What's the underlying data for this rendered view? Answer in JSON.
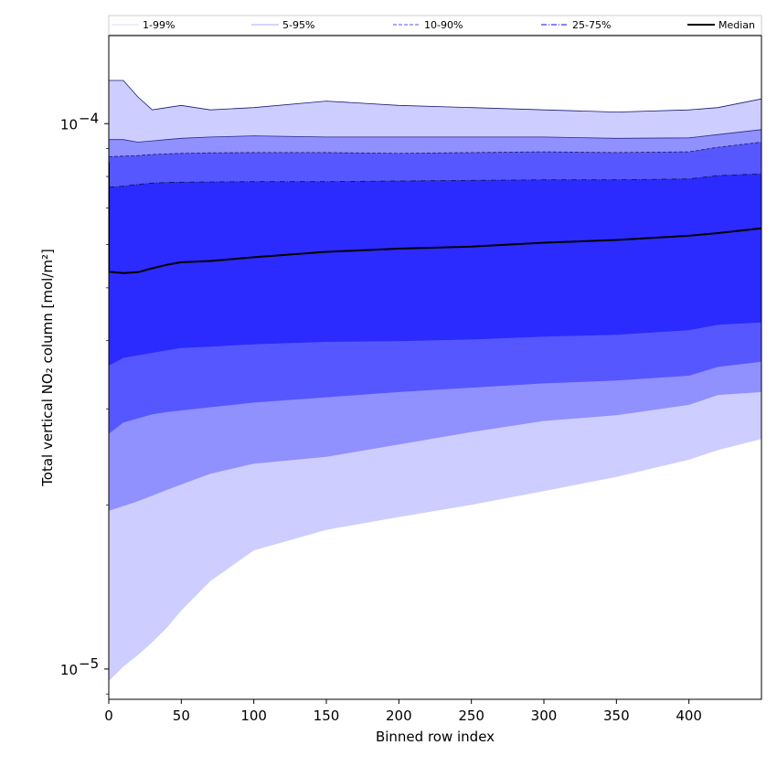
{
  "chart_data": {
    "type": "area",
    "xlabel": "Binned row index",
    "ylabel": "Total vertical NO₂ column [mol/m²]",
    "xlim": [
      0,
      450
    ],
    "ylim": [
      8.8e-06,
      0.000145
    ],
    "yscale": "log",
    "xticks": [
      0,
      50,
      100,
      150,
      200,
      250,
      300,
      350,
      400
    ],
    "xtick_labels": [
      "0",
      "50",
      "100",
      "150",
      "200",
      "250",
      "300",
      "350",
      "400"
    ],
    "ytick_labels": [
      {
        "value": 0.0001,
        "mantissa": "10",
        "exponent": "−4"
      },
      {
        "value": 1e-05,
        "mantissa": "10",
        "exponent": "−5"
      }
    ],
    "legend_position": "top",
    "colors": {
      "band_1_99": "#cdcdff",
      "band_5_95": "#9090ff",
      "band_10_90": "#5757ff",
      "band_25_75": "#2b2bff",
      "median": "#000000"
    },
    "legend": [
      {
        "label": "1-99%",
        "style": "solid-thin"
      },
      {
        "label": "5-95%",
        "style": "solid-thin"
      },
      {
        "label": "10-90%",
        "style": "dashed"
      },
      {
        "label": "25-75%",
        "style": "dashdot"
      },
      {
        "label": "Median",
        "style": "solid-thick"
      }
    ],
    "x": [
      0,
      10,
      20,
      30,
      40,
      50,
      70,
      100,
      150,
      200,
      250,
      300,
      350,
      400,
      420,
      450
    ],
    "series": [
      {
        "name": "1-99%",
        "lower": [
          9.5e-06,
          1.01e-05,
          1.06e-05,
          1.12e-05,
          1.19e-05,
          1.28e-05,
          1.45e-05,
          1.65e-05,
          1.8e-05,
          1.9e-05,
          2e-05,
          2.12e-05,
          2.25e-05,
          2.42e-05,
          2.52e-05,
          2.64e-05
        ],
        "upper": [
          0.00012,
          0.00012,
          0.000112,
          0.000106,
          0.000107,
          0.000108,
          0.000106,
          0.000107,
          0.00011,
          0.000108,
          0.000107,
          0.000106,
          0.000105,
          0.000106,
          0.000107,
          0.000111
        ]
      },
      {
        "name": "5-95%",
        "lower": [
          1.95e-05,
          1.99e-05,
          2.03e-05,
          2.08e-05,
          2.13e-05,
          2.18e-05,
          2.28e-05,
          2.38e-05,
          2.45e-05,
          2.58e-05,
          2.72e-05,
          2.85e-05,
          2.92e-05,
          3.05e-05,
          3.18e-05,
          3.22e-05
        ],
        "upper": [
          9.35e-05,
          9.35e-05,
          9.25e-05,
          9.3e-05,
          9.35e-05,
          9.4e-05,
          9.45e-05,
          9.5e-05,
          9.45e-05,
          9.45e-05,
          9.45e-05,
          9.45e-05,
          9.4e-05,
          9.42e-05,
          9.55e-05,
          9.75e-05
        ]
      },
      {
        "name": "10-90%",
        "lower": [
          2.7e-05,
          2.83e-05,
          2.88e-05,
          2.93e-05,
          2.96e-05,
          2.98e-05,
          3.02e-05,
          3.08e-05,
          3.15e-05,
          3.22e-05,
          3.28e-05,
          3.34e-05,
          3.38e-05,
          3.45e-05,
          3.58e-05,
          3.66e-05
        ],
        "upper": [
          8.7e-05,
          8.72e-05,
          8.74e-05,
          8.78e-05,
          8.8e-05,
          8.82e-05,
          8.84e-05,
          8.85e-05,
          8.85e-05,
          8.82e-05,
          8.85e-05,
          8.88e-05,
          8.85e-05,
          8.88e-05,
          9.05e-05,
          9.25e-05
        ]
      },
      {
        "name": "25-75%",
        "lower": [
          3.6e-05,
          3.72e-05,
          3.76e-05,
          3.8e-05,
          3.84e-05,
          3.88e-05,
          3.9e-05,
          3.94e-05,
          3.98e-05,
          3.99e-05,
          4.02e-05,
          4.07e-05,
          4.1e-05,
          4.18e-05,
          4.28e-05,
          4.32e-05
        ],
        "upper": [
          7.65e-05,
          7.68e-05,
          7.74e-05,
          7.78e-05,
          7.8e-05,
          7.81e-05,
          7.82e-05,
          7.83e-05,
          7.83e-05,
          7.85e-05,
          7.87e-05,
          7.89e-05,
          7.89e-05,
          7.92e-05,
          8.03e-05,
          8.09e-05
        ]
      },
      {
        "name": "Median",
        "values": [
          5.35e-05,
          5.32e-05,
          5.34e-05,
          5.43e-05,
          5.51e-05,
          5.57e-05,
          5.6e-05,
          5.69e-05,
          5.82e-05,
          5.9e-05,
          5.95e-05,
          6.05e-05,
          6.12e-05,
          6.23e-05,
          6.3e-05,
          6.43e-05
        ]
      }
    ]
  }
}
